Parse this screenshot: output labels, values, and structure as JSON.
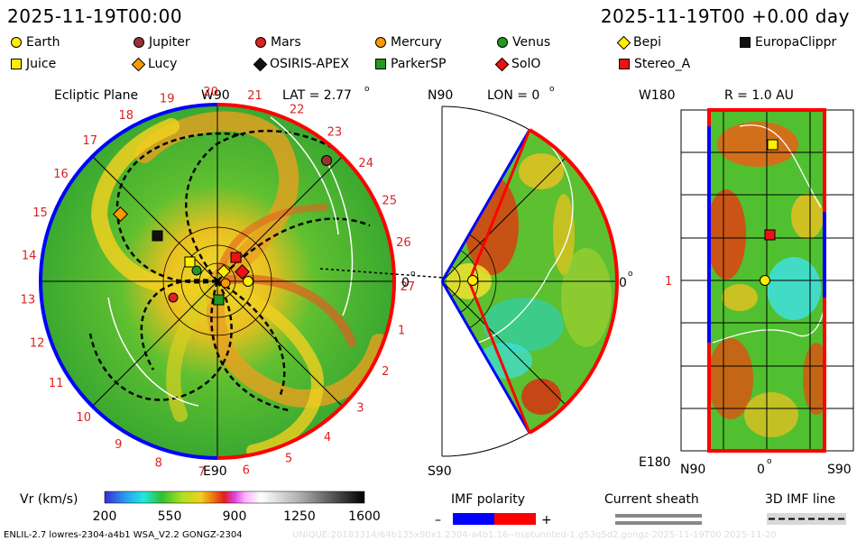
{
  "header": {
    "left_time": "2025-11-19T00:00",
    "right_time": "2025-11-19T00 +0.00 day"
  },
  "legend": [
    {
      "name": "Earth",
      "color": "#ffee00",
      "shape": "circle"
    },
    {
      "name": "Jupiter",
      "color": "#993333",
      "shape": "circle"
    },
    {
      "name": "Mars",
      "color": "#dd2222",
      "shape": "circle"
    },
    {
      "name": "Mercury",
      "color": "#ff9900",
      "shape": "circle"
    },
    {
      "name": "Venus",
      "color": "#229922",
      "shape": "circle"
    },
    {
      "name": "Bepi",
      "color": "#ffee00",
      "shape": "diamond"
    },
    {
      "name": "EuropaClippr",
      "color": "#111111",
      "shape": "square"
    },
    {
      "name": "Juice",
      "color": "#ffee00",
      "shape": "square"
    },
    {
      "name": "Lucy",
      "color": "#ff9900",
      "shape": "diamond"
    },
    {
      "name": "OSIRIS-APEX",
      "color": "#111111",
      "shape": "diamond"
    },
    {
      "name": "ParkerSP",
      "color": "#229922",
      "shape": "square"
    },
    {
      "name": "SolO",
      "color": "#ee1111",
      "shape": "diamond"
    },
    {
      "name": "Stereo_A",
      "color": "#ee1111",
      "shape": "square"
    }
  ],
  "panels": {
    "ecliptic": {
      "title": "Ecliptic Plane",
      "top_label": "W90",
      "bottom_label": "E90",
      "right_label": "0",
      "lat_label": "LAT = 2.77",
      "degree_mark": "o",
      "carrington_ticks": [
        "20",
        "21",
        "22",
        "23",
        "24",
        "25",
        "26",
        "27",
        "1",
        "2",
        "3",
        "4",
        "5",
        "6",
        "7",
        "8",
        "9",
        "10",
        "11",
        "12",
        "13",
        "14",
        "15",
        "16",
        "17",
        "18",
        "19"
      ]
    },
    "meridional": {
      "top_label": "N90",
      "bottom_label": "S90",
      "right_label": "0",
      "lon_label": "LON = 0",
      "degree_mark": "o"
    },
    "sphere": {
      "top_label": "W180",
      "bottom_label": "E180",
      "left_label": "1",
      "r_label": "R = 1.0 AU",
      "x_labels": [
        "N90",
        "0",
        "S90"
      ],
      "degree_mark": "o"
    }
  },
  "colorbar": {
    "label": "Vr (km/s)",
    "ticks": [
      "200",
      "550",
      "900",
      "1250",
      "1600"
    ],
    "range": [
      200,
      1600
    ]
  },
  "imf": {
    "title": "IMF polarity",
    "minus": "–",
    "plus": "+",
    "neg_color": "#0000ff",
    "pos_color": "#ff0000"
  },
  "current_sheath": {
    "title": "Current sheath"
  },
  "imf_line": {
    "title": "3D IMF line"
  },
  "footer": {
    "left": "ENLIL-2.7 lowres-2304-a4b1 WSA_V2.2 GONGZ-2304",
    "right": "UNIQUE:20183314/64b135x90x1.2304-a4b1.16--nsptunnted-1.g53q5d2.gongz-2025-11-19T00   2025-11-20"
  }
}
